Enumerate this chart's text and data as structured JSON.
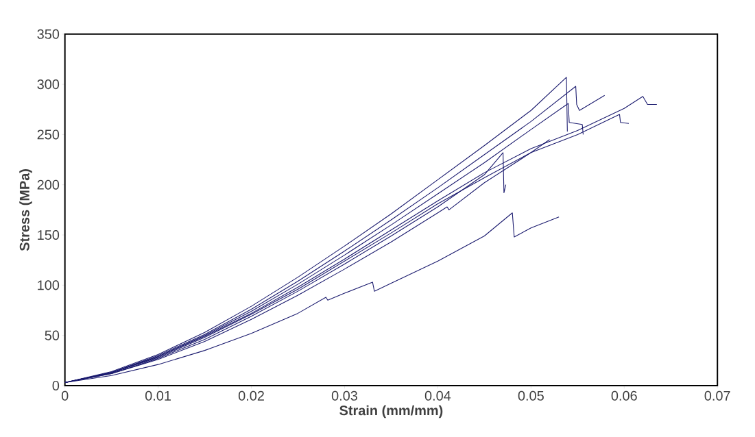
{
  "chart_data": {
    "type": "line",
    "xlabel": "Strain (mm/mm)",
    "ylabel": "Stress (MPa)",
    "xlim": [
      0,
      0.07
    ],
    "ylim": [
      0,
      350
    ],
    "xticks": [
      0,
      0.01,
      0.02,
      0.03,
      0.04,
      0.05,
      0.06,
      0.07
    ],
    "yticks": [
      0,
      50,
      100,
      150,
      200,
      250,
      300,
      350
    ],
    "grid": false,
    "marker": "none",
    "line_style": "solid",
    "series": [
      {
        "color": "#1a1a6e",
        "x": [
          0,
          0.005,
          0.01,
          0.015,
          0.02,
          0.025,
          0.03,
          0.035,
          0.04,
          0.045,
          0.05,
          0.0538,
          0.0539
        ],
        "values": [
          3,
          14,
          31,
          53,
          79,
          108,
          139,
          171,
          205,
          239,
          274,
          307,
          253
        ]
      },
      {
        "color": "#1a1a6e",
        "x": [
          0,
          0.005,
          0.01,
          0.015,
          0.02,
          0.025,
          0.03,
          0.035,
          0.04,
          0.045,
          0.05,
          0.0548,
          0.0549,
          0.0552,
          0.0579
        ],
        "values": [
          3,
          13,
          30,
          51,
          76,
          104,
          134,
          165,
          197,
          230,
          263,
          298,
          280,
          274,
          289
        ]
      },
      {
        "color": "#1a1a6e",
        "x": [
          0,
          0.005,
          0.01,
          0.015,
          0.02,
          0.025,
          0.03,
          0.035,
          0.04,
          0.045,
          0.05,
          0.054,
          0.0541,
          0.0555,
          0.0556
        ],
        "values": [
          3,
          13,
          29,
          50,
          74,
          101,
          130,
          160,
          191,
          222,
          255,
          281,
          262,
          260,
          250
        ]
      },
      {
        "color": "#1a1a6e",
        "x": [
          0,
          0.005,
          0.01,
          0.015,
          0.02,
          0.025,
          0.03,
          0.035,
          0.04,
          0.045,
          0.05,
          0.055,
          0.06,
          0.062,
          0.0625,
          0.0635
        ],
        "values": [
          3,
          13,
          29,
          49,
          72,
          98,
          126,
          155,
          184,
          212,
          236,
          254,
          276,
          288,
          280,
          280
        ]
      },
      {
        "color": "#1a1a6e",
        "x": [
          0,
          0.005,
          0.01,
          0.015,
          0.02,
          0.025,
          0.03,
          0.035,
          0.04,
          0.045,
          0.05,
          0.055,
          0.0595,
          0.0596,
          0.0605
        ],
        "values": [
          3,
          13,
          28,
          48,
          71,
          96,
          124,
          152,
          181,
          207,
          232,
          250,
          270,
          262,
          261
        ]
      },
      {
        "color": "#1a1a6e",
        "x": [
          0,
          0.005,
          0.01,
          0.015,
          0.02,
          0.025,
          0.03,
          0.035,
          0.04,
          0.045,
          0.047,
          0.0471,
          0.0473
        ],
        "values": [
          3,
          12,
          27,
          46,
          69,
          94,
          121,
          149,
          178,
          210,
          232,
          192,
          200
        ]
      },
      {
        "color": "#1a1a6e",
        "x": [
          0,
          0.005,
          0.01,
          0.015,
          0.02,
          0.025,
          0.03,
          0.035,
          0.04,
          0.041,
          0.0412,
          0.045,
          0.05,
          0.052
        ],
        "values": [
          3,
          12,
          26,
          44,
          66,
          90,
          116,
          143,
          172,
          178,
          175,
          202,
          232,
          245
        ]
      },
      {
        "color": "#1a1a6e",
        "x": [
          0,
          0.005,
          0.01,
          0.015,
          0.02,
          0.025,
          0.028,
          0.0282,
          0.03,
          0.033,
          0.0332,
          0.035,
          0.04,
          0.045,
          0.048,
          0.0482,
          0.05,
          0.053
        ],
        "values": [
          3,
          10,
          21,
          35,
          52,
          72,
          88,
          85,
          92,
          103,
          94,
          102,
          124,
          149,
          172,
          148,
          157,
          168
        ]
      }
    ]
  }
}
